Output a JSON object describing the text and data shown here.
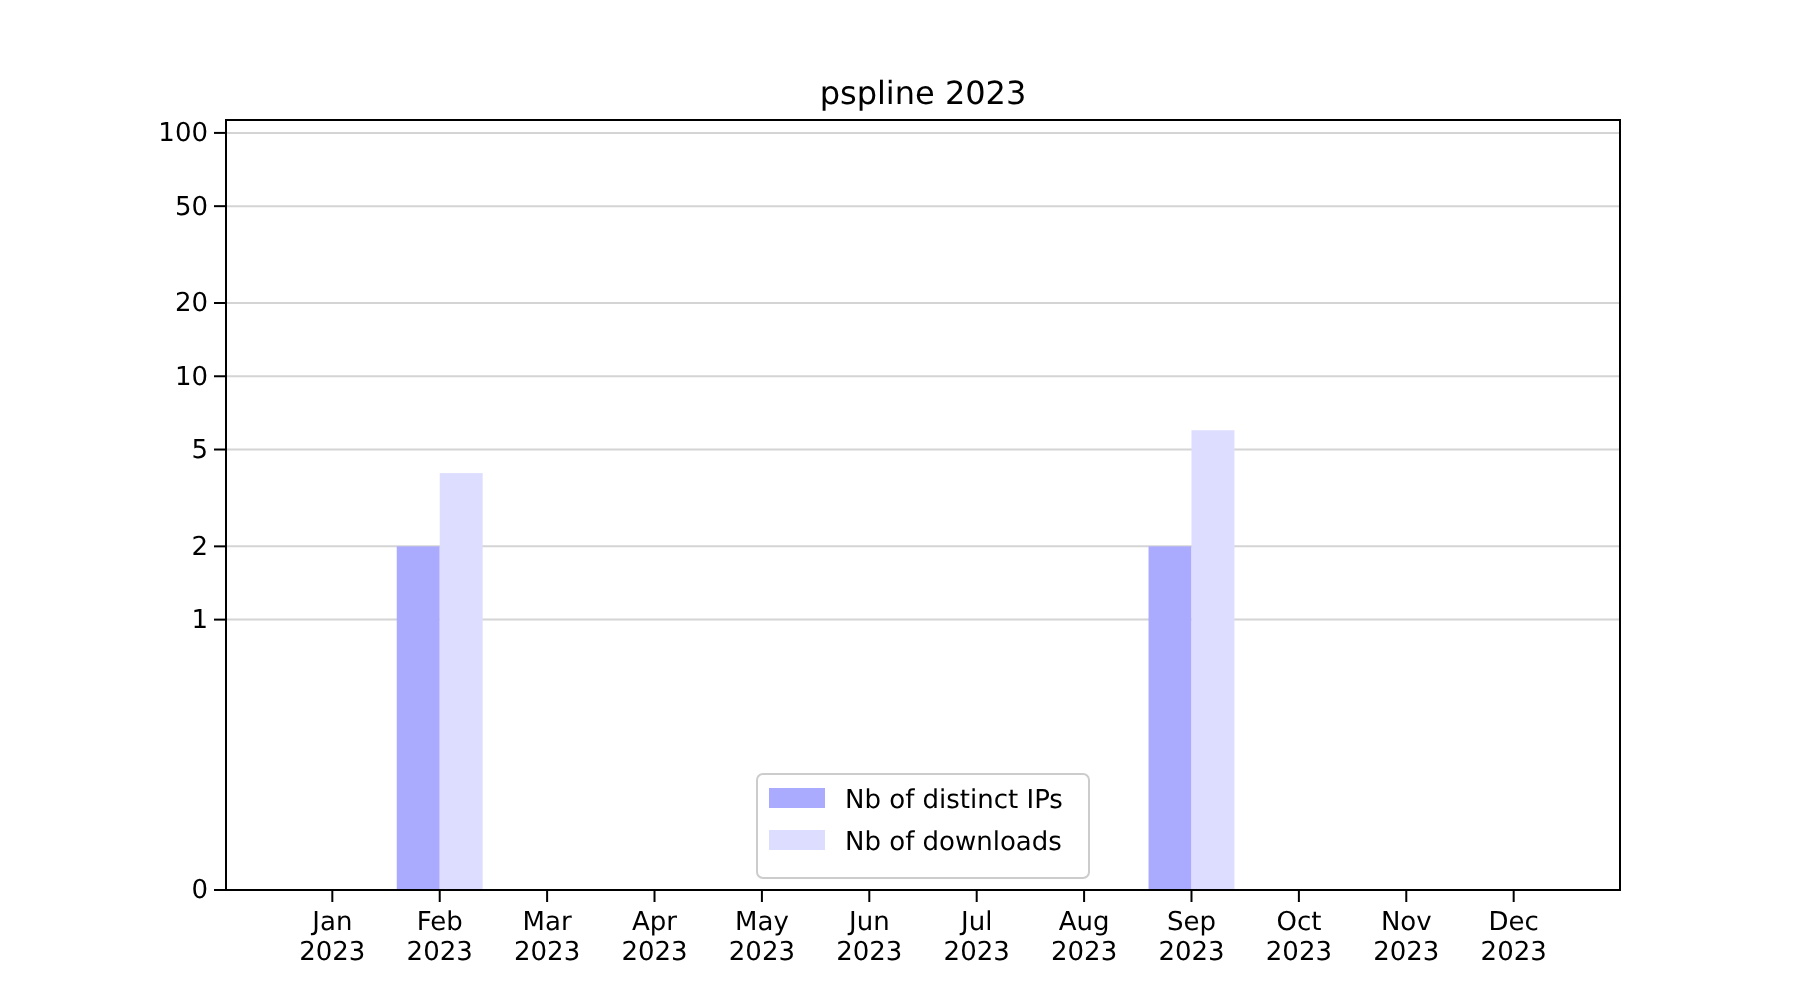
{
  "chart_data": {
    "type": "bar",
    "title": "pspline 2023",
    "categories": [
      "Jan\n2023",
      "Feb\n2023",
      "Mar\n2023",
      "Apr\n2023",
      "May\n2023",
      "Jun\n2023",
      "Jul\n2023",
      "Aug\n2023",
      "Sep\n2023",
      "Oct\n2023",
      "Nov\n2023",
      "Dec\n2023"
    ],
    "series": [
      {
        "name": "Nb of distinct IPs",
        "color": "#aaaaff",
        "values": [
          0,
          2,
          0,
          0,
          0,
          0,
          0,
          0,
          2,
          0,
          0,
          0
        ]
      },
      {
        "name": "Nb of downloads",
        "color": "#ddddff",
        "values": [
          0,
          4,
          0,
          0,
          0,
          0,
          0,
          0,
          6,
          0,
          0,
          0
        ]
      }
    ],
    "log": true,
    "ylim": [
      0,
      113
    ],
    "yticks": [
      0,
      1,
      2,
      5,
      10,
      20,
      50,
      100
    ],
    "grid": "y",
    "legend": "bottom"
  }
}
